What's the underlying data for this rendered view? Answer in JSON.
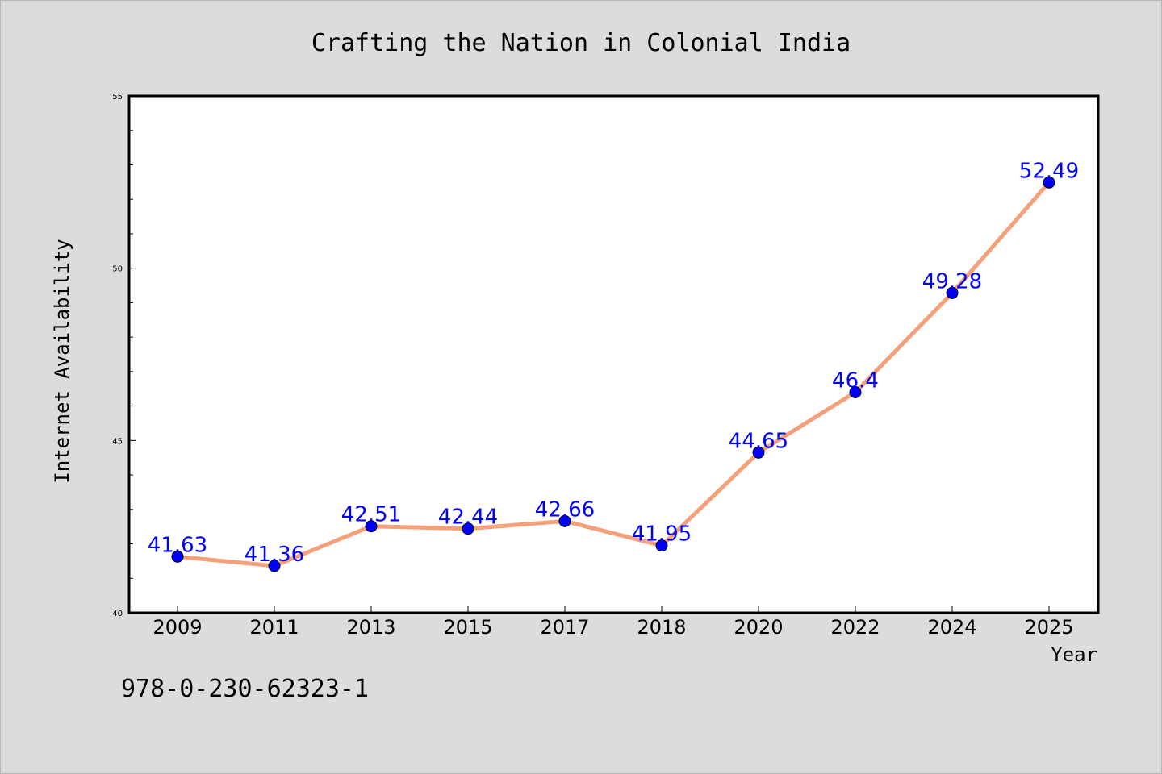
{
  "chart_data": {
    "type": "line",
    "title": "Crafting the Nation in Colonial India",
    "xlabel": "Year",
    "ylabel": "Internet Availability",
    "categories": [
      "2009",
      "2011",
      "2013",
      "2015",
      "2017",
      "2018",
      "2020",
      "2022",
      "2024",
      "2025"
    ],
    "series": [
      {
        "values": [
          41.63,
          41.36,
          42.51,
          42.44,
          42.66,
          41.95,
          44.65,
          46.4,
          49.28,
          52.49
        ],
        "labels": [
          "41.63",
          "41.36",
          "42.51",
          "42.44",
          "42.66",
          "41.95",
          "44.65",
          "46.4",
          "49.28",
          "52.49"
        ],
        "line_color": "#f4a07a",
        "marker_color": "#0000ff"
      }
    ],
    "ylim": [
      40,
      55
    ],
    "y_ticks": [
      "40",
      "45",
      "50",
      "55"
    ],
    "grid": false,
    "legend": "none"
  },
  "footer": {
    "isbn": "978-0-230-62323-1"
  }
}
